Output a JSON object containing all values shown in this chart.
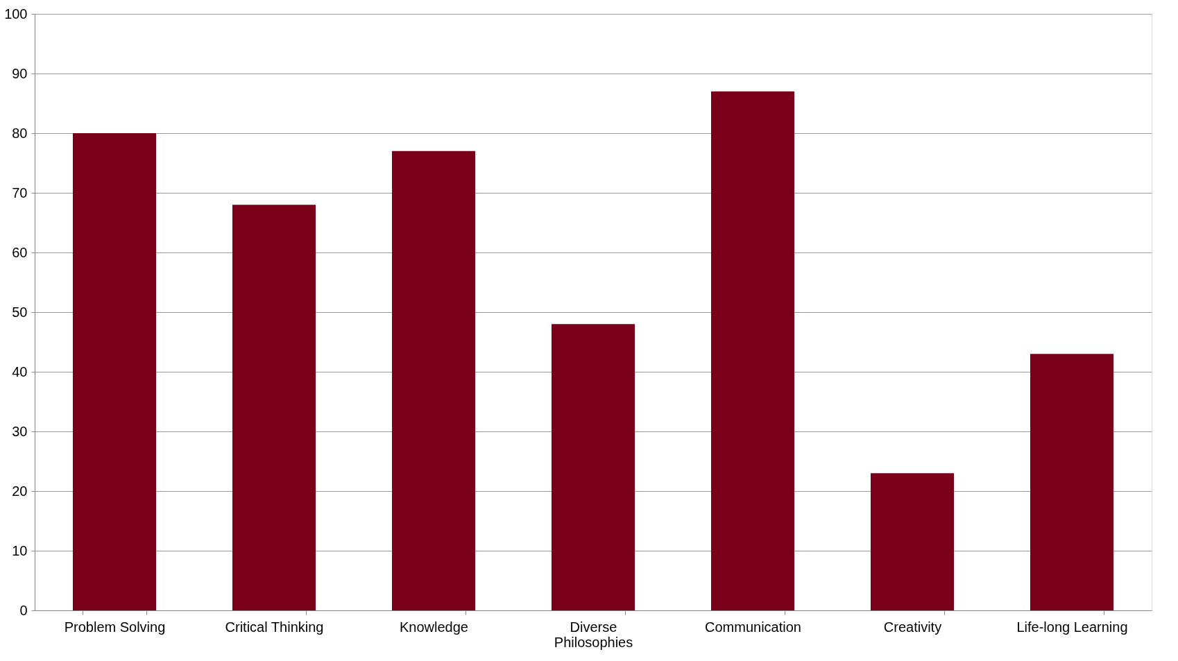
{
  "chart_data": {
    "type": "bar",
    "categories": [
      "Problem Solving",
      "Critical Thinking",
      "Knowledge",
      "Diverse Philosophies",
      "Communication",
      "Creativity",
      "Life-long Learning"
    ],
    "values": [
      80,
      68,
      77,
      48,
      87,
      23,
      43
    ],
    "color": "#7a0019",
    "ylim": [
      0,
      100
    ],
    "yticks": [
      0,
      10,
      20,
      30,
      40,
      50,
      60,
      70,
      80,
      90,
      100
    ],
    "grid": "y"
  }
}
